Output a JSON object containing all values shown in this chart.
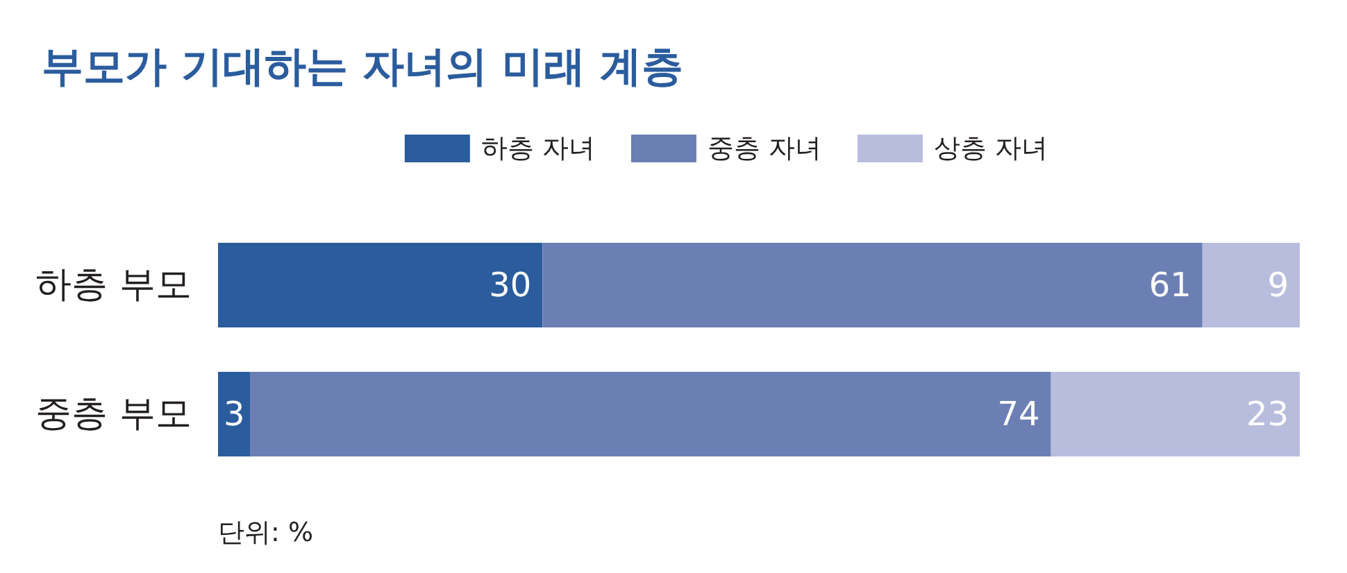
{
  "chart_data": {
    "type": "bar",
    "orientation": "horizontal",
    "stacked": true,
    "title": "부모가 기대하는 자녀의 미래 계층",
    "categories": [
      "하층 부모",
      "중층 부모"
    ],
    "series": [
      {
        "name": "하층 자녀",
        "color": "#2b5c9d",
        "values": [
          30,
          3
        ]
      },
      {
        "name": "중층 자녀",
        "color": "#6c7fb4",
        "values": [
          61,
          74
        ]
      },
      {
        "name": "상층 자녀",
        "color": "#b8bddd",
        "values": [
          9,
          23
        ]
      }
    ],
    "xlim": [
      0,
      100
    ],
    "data_labels": true,
    "legend": "top",
    "annotations": [
      "단위: %"
    ]
  }
}
